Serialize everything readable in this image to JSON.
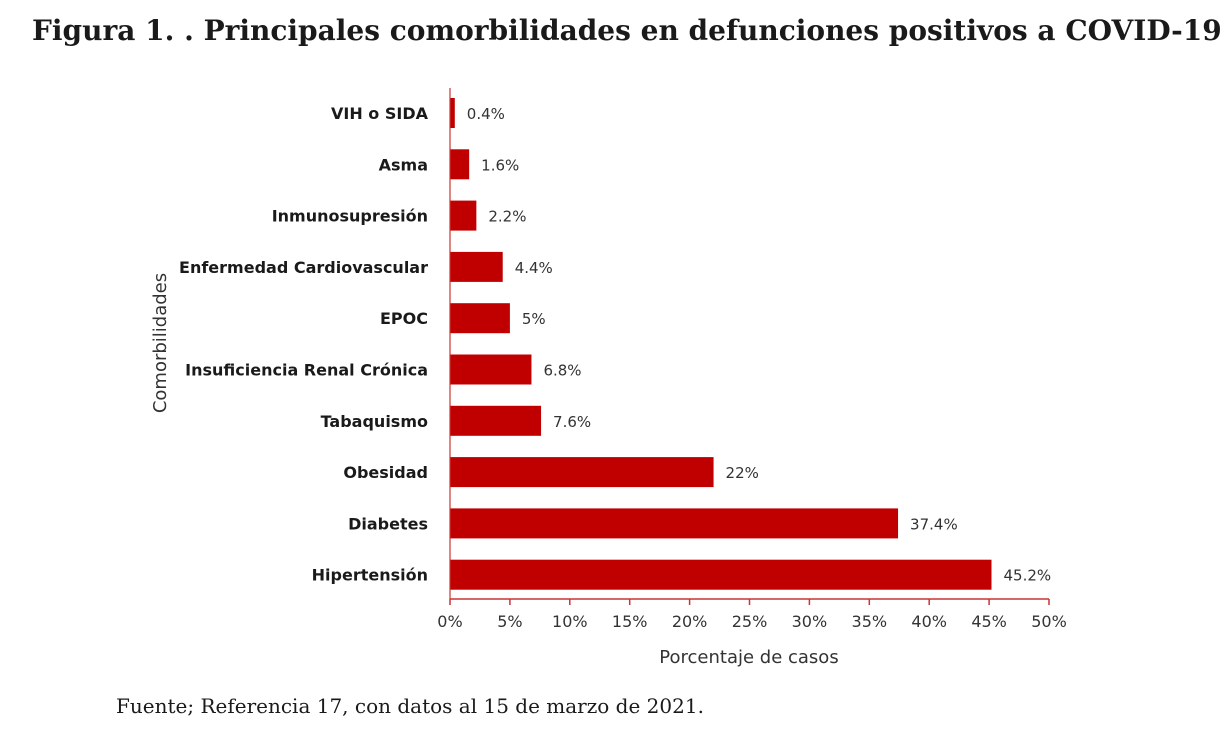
{
  "figure": {
    "title": "Figura 1. . Principales comorbilidades en defunciones positivos a COVID-19",
    "source": "Fuente; Referencia 17, con datos al 15 de marzo de 2021."
  },
  "chart_data": {
    "type": "bar",
    "orientation": "horizontal",
    "title": "",
    "xlabel": "Porcentaje de casos",
    "ylabel": "Comorbilidades",
    "categories": [
      "VIH o SIDA",
      "Asma",
      "Inmunosupresión",
      "Enfermedad Cardiovascular",
      "EPOC",
      "Insuficiencia Renal Crónica",
      "Tabaquismo",
      "Obesidad",
      "Diabetes",
      "Hipertensión"
    ],
    "values": [
      0.4,
      1.6,
      2.2,
      4.4,
      5,
      6.8,
      7.6,
      22,
      37.4,
      45.2
    ],
    "data_labels": [
      "0.4%",
      "1.6%",
      "2.2%",
      "4.4%",
      "5%",
      "6.8%",
      "7.6%",
      "22%",
      "37.4%",
      "45.2%"
    ],
    "xlim": [
      0,
      50
    ],
    "x_ticks": [
      0,
      5,
      10,
      15,
      20,
      25,
      30,
      35,
      40,
      45,
      50
    ],
    "x_tick_labels": [
      "0%",
      "5%",
      "10%",
      "15%",
      "20%",
      "25%",
      "30%",
      "35%",
      "40%",
      "45%",
      "50%"
    ],
    "grid": false,
    "legend": "none",
    "colors": {
      "bar": "#c00000",
      "axis": "#cc3333"
    }
  }
}
